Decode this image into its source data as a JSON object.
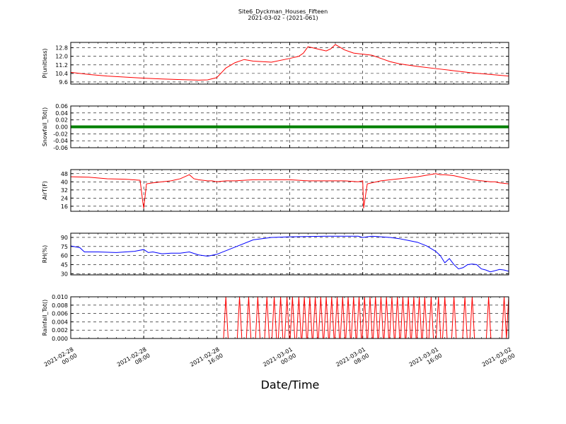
{
  "figure": {
    "title": "Site6_Dyckman_Houses_Fifteen",
    "subtitle": "2021-03-02 - (2021-061)",
    "xlabel": "Date/Time",
    "x_ticks": [
      {
        "l1": "2021-02-28",
        "l2": "00:00"
      },
      {
        "l1": "2021-02-28",
        "l2": "08:00"
      },
      {
        "l1": "2021-02-28",
        "l2": "16:00"
      },
      {
        "l1": "2021-03-01",
        "l2": "00:00"
      },
      {
        "l1": "2021-03-01",
        "l2": "08:00"
      },
      {
        "l1": "2021-03-01",
        "l2": "16:00"
      },
      {
        "l1": "2021-03-02",
        "l2": "00:00"
      }
    ]
  },
  "chart_data": [
    {
      "type": "line",
      "ylabel": "P(unitless)",
      "ylim": [
        9.4,
        13.3
      ],
      "yticks": [
        "9.6",
        "10.4",
        "11.2",
        "12.0",
        "12.8"
      ],
      "ytick_values": [
        9.6,
        10.4,
        11.2,
        12.0,
        12.8
      ],
      "grid": true,
      "x_hours": [
        0,
        2,
        4,
        6,
        8,
        10,
        12,
        14,
        15,
        16,
        17,
        18,
        19,
        20,
        22,
        24,
        25,
        25.5,
        26,
        27,
        28,
        28.5,
        29,
        30,
        31,
        32,
        33,
        34,
        35,
        36,
        38,
        40,
        42,
        44,
        46,
        48
      ],
      "series": [
        {
          "color": "#ff0000",
          "values": [
            10.5,
            10.3,
            10.15,
            10.05,
            9.95,
            9.88,
            9.82,
            9.77,
            9.8,
            10.0,
            10.9,
            11.4,
            11.7,
            11.55,
            11.45,
            11.8,
            12.0,
            12.3,
            12.9,
            12.7,
            12.5,
            12.7,
            13.1,
            12.6,
            12.3,
            12.2,
            12.1,
            11.8,
            11.5,
            11.3,
            11.05,
            10.85,
            10.65,
            10.45,
            10.3,
            10.15
          ]
        }
      ]
    },
    {
      "type": "line",
      "ylabel": "Snowfall_Tot()",
      "ylim": [
        -0.06,
        0.06
      ],
      "yticks": [
        "-0.06",
        "-0.04",
        "-0.02",
        "0.00",
        "0.02",
        "0.04",
        "0.06"
      ],
      "ytick_values": [
        -0.06,
        -0.04,
        -0.02,
        0.0,
        0.02,
        0.04,
        0.06
      ],
      "grid": true,
      "x_hours": [
        0,
        48
      ],
      "series": [
        {
          "color": "#008000",
          "values": [
            0.0,
            0.0
          ]
        }
      ]
    },
    {
      "type": "line",
      "ylabel": "AirT(F)",
      "ylim": [
        11,
        52
      ],
      "yticks": [
        "16",
        "24",
        "32",
        "40",
        "48"
      ],
      "ytick_values": [
        16,
        24,
        32,
        40,
        48
      ],
      "grid": true,
      "x_hours": [
        0,
        2,
        4,
        6,
        7.6,
        7.9,
        8,
        8.3,
        9,
        10,
        11,
        12,
        13,
        13.5,
        14,
        15,
        15.5,
        16,
        17,
        18,
        20,
        24,
        26,
        28,
        30,
        31.5,
        32,
        32.1,
        32.5,
        34,
        36,
        38,
        40,
        40.5,
        41,
        42,
        44,
        46,
        46.5,
        47,
        48
      ],
      "series": [
        {
          "color": "#ff0000",
          "values": [
            45,
            44.5,
            43,
            42.5,
            41.5,
            20,
            14,
            38,
            39,
            40,
            41,
            43,
            47,
            43,
            42,
            41,
            41,
            40,
            41,
            41,
            42,
            42,
            41,
            41,
            41,
            40,
            41,
            14,
            38,
            41,
            43,
            45,
            48,
            47,
            47,
            46,
            42,
            40,
            40,
            39,
            38
          ]
        }
      ]
    },
    {
      "type": "line",
      "ylabel": "RH(%)",
      "ylim": [
        28,
        97
      ],
      "yticks": [
        "30",
        "45",
        "60",
        "75",
        "90"
      ],
      "ytick_values": [
        30,
        45,
        60,
        75,
        90
      ],
      "grid": true,
      "x_hours": [
        0,
        1,
        1.5,
        3,
        5,
        7,
        8,
        8.5,
        9,
        10,
        11,
        12,
        13,
        14,
        15,
        16,
        17,
        18,
        20,
        22,
        24,
        28,
        31.5,
        32,
        33,
        35,
        36,
        37,
        38,
        39,
        40,
        40.5,
        41,
        41.5,
        42,
        42.5,
        43,
        43.5,
        44,
        44.5,
        45,
        45.5,
        46,
        47,
        47.5,
        48
      ],
      "series": [
        {
          "color": "#0000ff",
          "values": [
            76,
            73,
            66,
            66,
            65,
            67,
            70,
            65,
            66,
            63,
            64,
            64,
            66,
            61,
            59,
            62,
            68,
            74,
            86,
            90,
            91,
            92,
            92,
            90,
            92,
            90,
            88,
            85,
            82,
            76,
            67,
            60,
            48,
            55,
            45,
            38,
            40,
            45,
            46,
            45,
            38,
            36,
            33,
            37,
            36,
            34
          ]
        }
      ]
    },
    {
      "type": "line",
      "ylabel": "Rainfall_Tot()",
      "ylim": [
        0,
        0.01
      ],
      "yticks": [
        "0.000",
        "0.002",
        "0.004",
        "0.006",
        "0.008",
        "0.010"
      ],
      "ytick_values": [
        0,
        0.002,
        0.004,
        0.006,
        0.008,
        0.01
      ],
      "grid": true,
      "spike_hours": [
        17.0,
        18.5,
        19.5,
        20.5,
        21.5,
        22.3,
        23.0,
        23.7,
        24.3,
        25.0,
        25.6,
        26.2,
        26.8,
        27.4,
        28.0,
        28.6,
        29.2,
        29.8,
        30.4,
        31.0,
        31.6,
        32.2,
        32.8,
        33.4,
        34.0,
        34.6,
        35.2,
        35.8,
        36.4,
        37.0,
        37.6,
        38.2,
        38.8,
        39.5,
        40.3,
        41.0,
        42.0,
        43.2,
        44.0,
        45.8,
        47.5,
        48.0
      ],
      "spike_value": 0.01,
      "series": [
        {
          "color": "#ff0000"
        }
      ]
    }
  ]
}
